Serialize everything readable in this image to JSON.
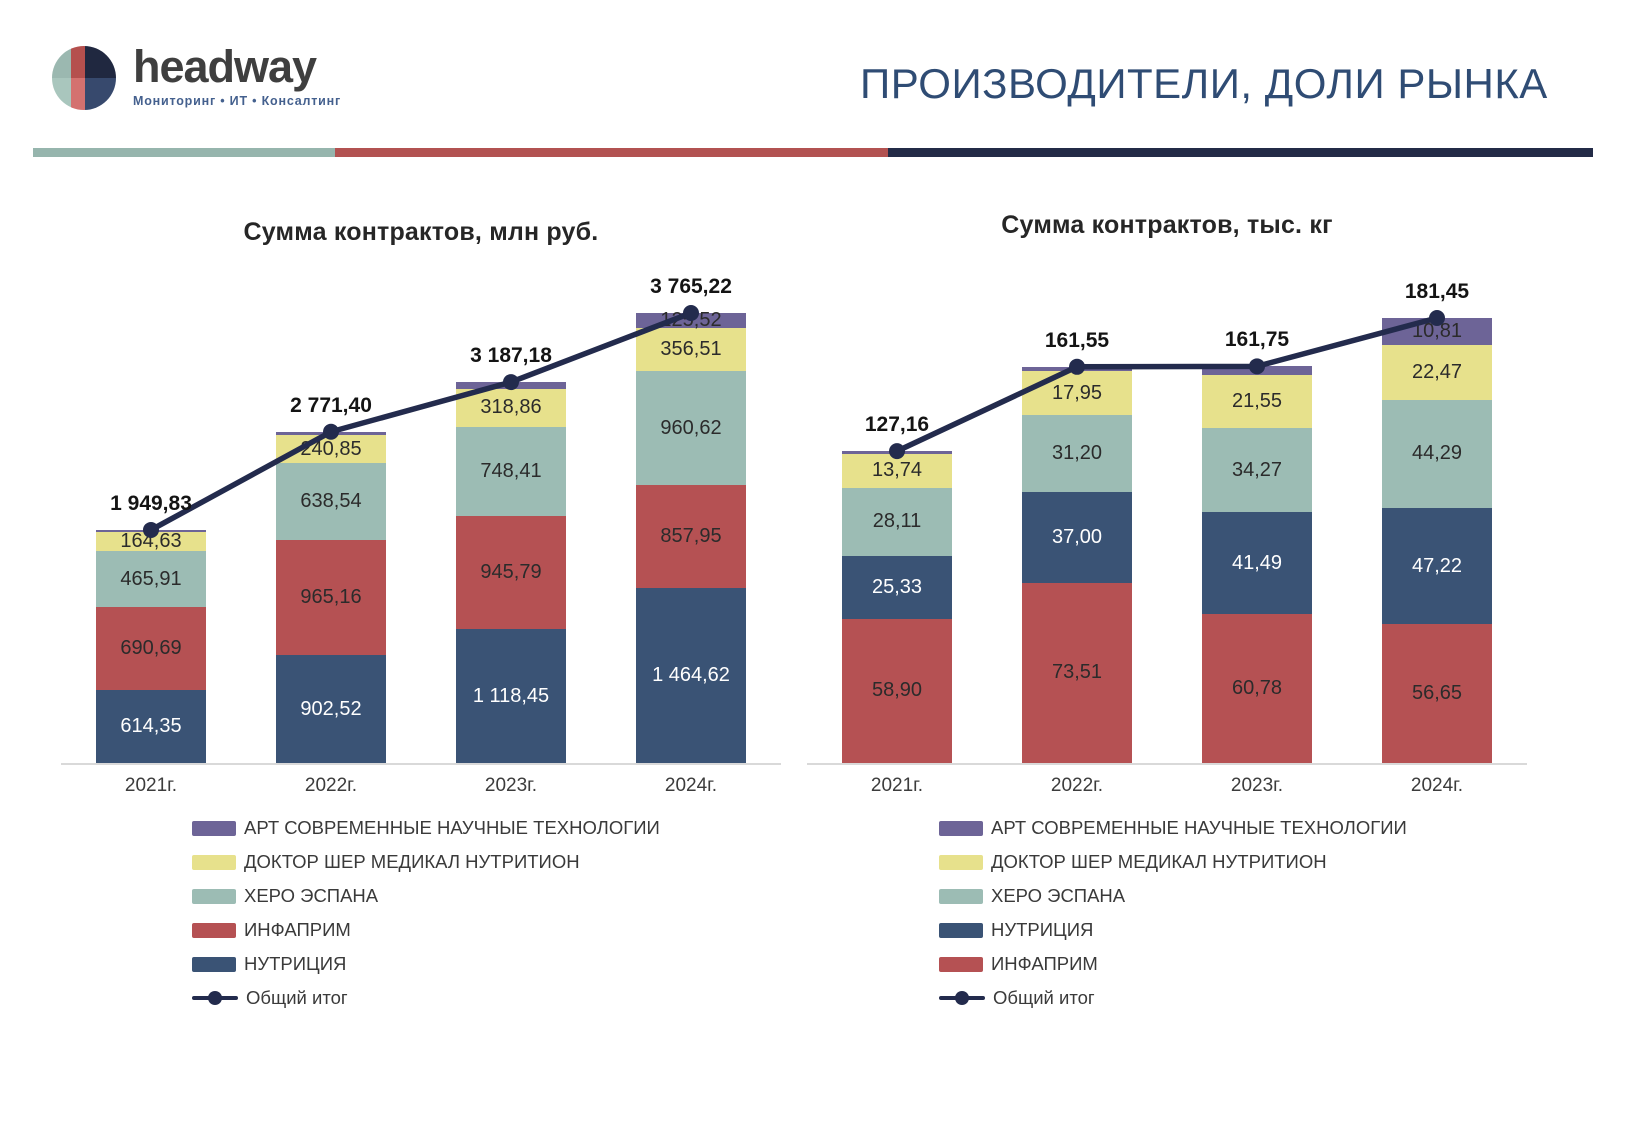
{
  "header": {
    "logo": {
      "brand": "headway",
      "tagline": "Мониторинг • ИТ • Консалтинг",
      "colors": {
        "sage_top": "#9BB8B0",
        "sage_bottom": "#A9C6BD",
        "red_top": "#B5504E",
        "red_bottom": "#D4716F",
        "navy_top": "#202840",
        "navy_bottom": "#37496D"
      }
    },
    "title": "ПРОИЗВОДИТЕЛИ, ДОЛИ РЫНКА",
    "title_color": "#2F4C74",
    "divider_colors": [
      "#96B5AD",
      "#B25251",
      "#232B47"
    ]
  },
  "palette": {
    "art": {
      "fill": "#6D6497",
      "text": "#2B2B2B"
    },
    "doctor": {
      "fill": "#E7E18C",
      "text": "#2B2B2B"
    },
    "hero": {
      "fill": "#9CBCB4",
      "text": "#2B2B2B"
    },
    "infaprim": {
      "fill": "#B55153",
      "text": "#2B2B2B"
    },
    "nutricia": {
      "fill": "#3A5375",
      "text": "#FFFFFF"
    },
    "total_line": "#232B4D"
  },
  "chart_data": [
    {
      "type": "bar",
      "stacked": true,
      "total_line": true,
      "title": "Сумма контрактов, млн руб.",
      "categories": [
        "2021г.",
        "2022г.",
        "2023г.",
        "2024г."
      ],
      "series": [
        {
          "key": "nutricia",
          "name": "НУТРИЦИЯ",
          "values": [
            614.35,
            902.52,
            1118.45,
            1464.62
          ],
          "labels": [
            "614,35",
            "902,52",
            "1 118,45",
            "1 464,62"
          ]
        },
        {
          "key": "infaprim",
          "name": "ИНФАПРИМ",
          "values": [
            690.69,
            965.16,
            945.79,
            857.95
          ],
          "labels": [
            "690,69",
            "965,16",
            "945,79",
            "857,95"
          ]
        },
        {
          "key": "hero",
          "name": "ХЕРО ЭСПАНА",
          "values": [
            465.91,
            638.54,
            748.41,
            960.62
          ],
          "labels": [
            "465,91",
            "638,54",
            "748,41",
            "960,62"
          ]
        },
        {
          "key": "doctor",
          "name": "ДОКТОР ШЕР МЕДИКАЛ НУТРИТИОН",
          "values": [
            164.63,
            240.85,
            318.86,
            356.51
          ],
          "labels": [
            "164,63",
            "240,85",
            "318,86",
            "356,51"
          ]
        },
        {
          "key": "art",
          "name": "АРТ СОВРЕМЕННЫЕ НАУЧНЫЕ ТЕХНОЛОГИИ",
          "values": [
            14.25,
            24.33,
            55.67,
            125.52
          ],
          "labels": [
            "",
            "",
            "",
            "125,52"
          ]
        }
      ],
      "totals": [
        1949.83,
        2771.4,
        3187.18,
        3765.22
      ],
      "total_labels": [
        "1 949,83",
        "2 771,40",
        "3 187,18",
        "3 765,22"
      ],
      "legend": [
        {
          "key": "art",
          "label": "АРТ СОВРЕМЕННЫЕ НАУЧНЫЕ ТЕХНОЛОГИИ"
        },
        {
          "key": "doctor",
          "label": "ДОКТОР ШЕР МЕДИКАЛ НУТРИТИОН"
        },
        {
          "key": "hero",
          "label": "ХЕРО ЭСПАНА"
        },
        {
          "key": "infaprim",
          "label": "ИНФАПРИМ"
        },
        {
          "key": "nutricia",
          "label": "НУТРИЦИЯ"
        },
        {
          "key": "total",
          "label": "Общий итог"
        }
      ]
    },
    {
      "type": "bar",
      "stacked": true,
      "total_line": true,
      "title": "Сумма контрактов, тыс. кг",
      "categories": [
        "2021г.",
        "2022г.",
        "2023г.",
        "2024г."
      ],
      "series": [
        {
          "key": "infaprim",
          "name": "ИНФАПРИМ",
          "values": [
            58.9,
            73.51,
            60.78,
            56.65
          ],
          "labels": [
            "58,90",
            "73,51",
            "60,78",
            "56,65"
          ]
        },
        {
          "key": "nutricia",
          "name": "НУТРИЦИЯ",
          "values": [
            25.33,
            37.0,
            41.49,
            47.22
          ],
          "labels": [
            "25,33",
            "37,00",
            "41,49",
            "47,22"
          ]
        },
        {
          "key": "hero",
          "name": "ХЕРО ЭСПАНА",
          "values": [
            28.11,
            31.2,
            34.27,
            44.29
          ],
          "labels": [
            "28,11",
            "31,20",
            "34,27",
            "44,29"
          ]
        },
        {
          "key": "doctor",
          "name": "ДОКТОР ШЕР МЕДИКАЛ НУТРИТИОН",
          "values": [
            13.74,
            17.95,
            21.55,
            22.47
          ],
          "labels": [
            "13,74",
            "17,95",
            "21,55",
            "22,47"
          ]
        },
        {
          "key": "art",
          "name": "АРТ СОВРЕМЕННЫЕ НАУЧНЫЕ ТЕХНОЛОГИИ",
          "values": [
            1.08,
            1.89,
            3.66,
            10.81
          ],
          "labels": [
            "",
            "",
            "",
            "10,81"
          ]
        }
      ],
      "totals": [
        127.16,
        161.55,
        161.75,
        181.45
      ],
      "total_labels": [
        "127,16",
        "161,55",
        "161,75",
        "181,45"
      ],
      "legend": [
        {
          "key": "art",
          "label": "АРТ СОВРЕМЕННЫЕ НАУЧНЫЕ ТЕХНОЛОГИИ"
        },
        {
          "key": "doctor",
          "label": "ДОКТОР ШЕР МЕДИКАЛ НУТРИТИОН"
        },
        {
          "key": "hero",
          "label": "ХЕРО ЭСПАНА"
        },
        {
          "key": "nutricia",
          "label": "НУТРИЦИЯ"
        },
        {
          "key": "infaprim",
          "label": "ИНФАПРИМ"
        },
        {
          "key": "total",
          "label": "Общий итог"
        }
      ]
    }
  ]
}
